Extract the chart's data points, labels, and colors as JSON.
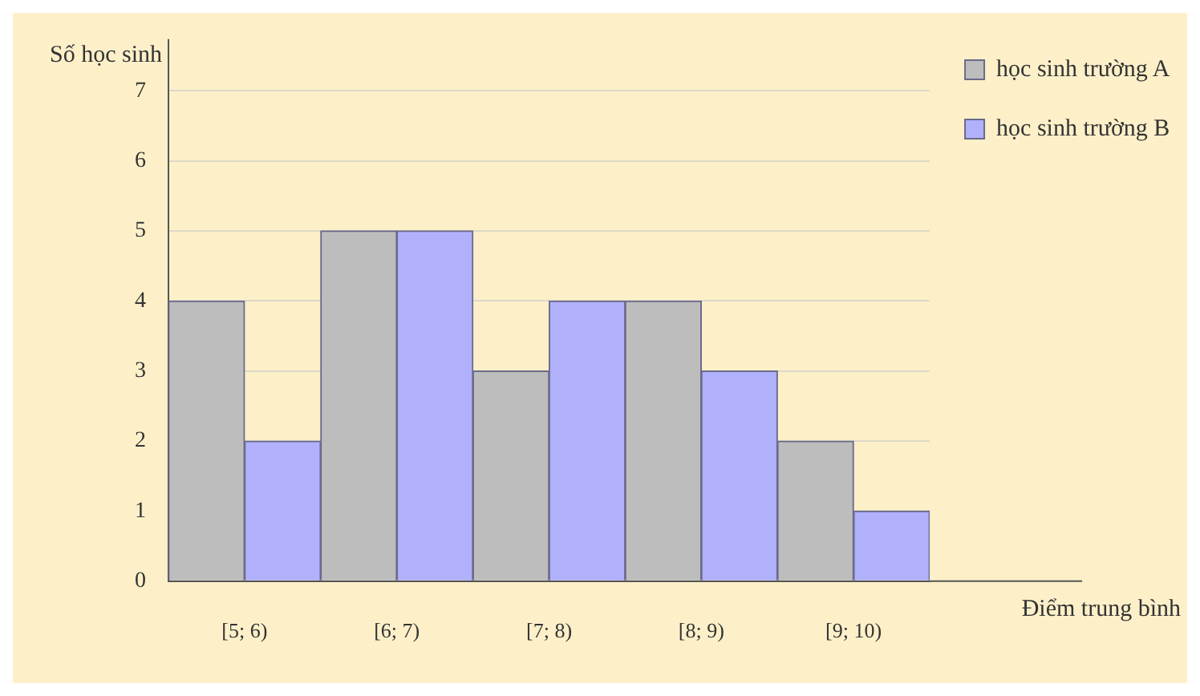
{
  "chart_data": {
    "type": "bar",
    "xlabel": "Điểm trung bình",
    "ylabel": "Số học sinh",
    "categories": [
      "[5; 6)",
      "[6; 7)",
      "[7; 8)",
      "[8; 9)",
      "[9; 10)"
    ],
    "series": [
      {
        "name": "học sinh trường A",
        "color": "#bdbdbd",
        "values": [
          4,
          5,
          3,
          4,
          2
        ]
      },
      {
        "name": "học sinh trường B",
        "color": "#b0b0fb",
        "values": [
          2,
          5,
          4,
          3,
          1
        ]
      }
    ],
    "ylim": [
      0,
      7.6
    ],
    "yticks": [
      0,
      1,
      2,
      3,
      4,
      5,
      6,
      7
    ],
    "grid": "y",
    "legend": "right"
  }
}
